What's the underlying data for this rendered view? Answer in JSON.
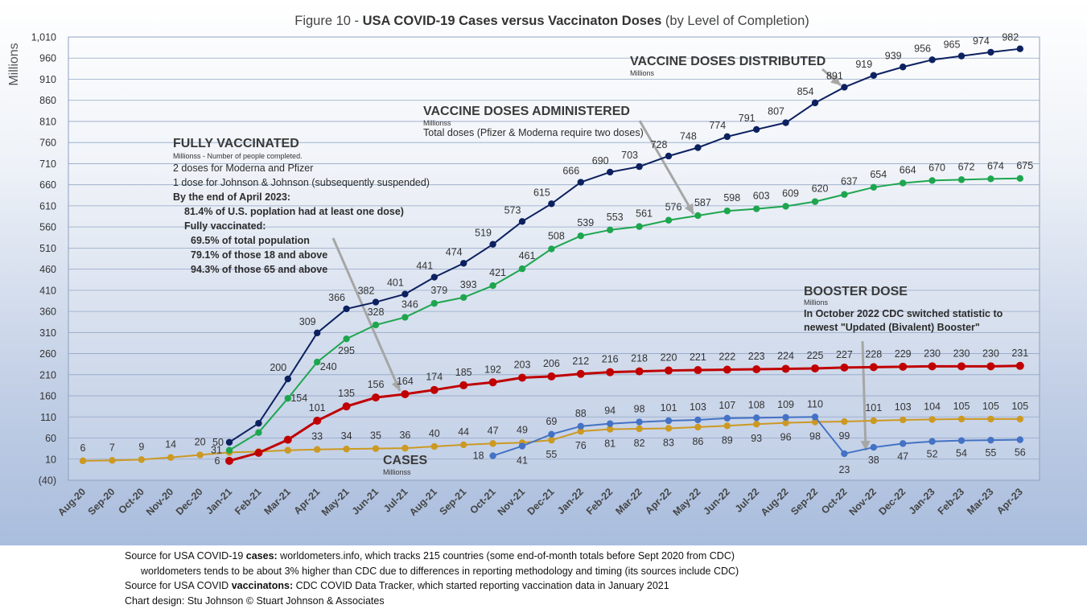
{
  "footer": {
    "line1_a": "Source for USA COVID-19 ",
    "line1_b": "cases:",
    "line1_c": " worldometers.info, which tracks 215 countries  (some end-of-month totals before Sept 2020 from CDC)",
    "line2": "worldometers tends to be about 3% higher than CDC due to differences in reporting methodology and timing (its sources include CDC)",
    "line3_a": "Source for USA COVID ",
    "line3_b": "vaccinatons:",
    "line3_c": " CDC COVID Data Tracker, which started reporting vaccination data in January 2021",
    "line4": "Chart design: Stu Johnson © Stuart Johnson & Associates"
  },
  "annotations": {
    "distributed": {
      "title": "VACCINE DOSES DISTRIBUTED",
      "sub": "Millions"
    },
    "administered": {
      "title": "VACCINE DOSES ADMINISTERED",
      "sub": "Millionss",
      "note": "Total doses (Pfizer & Moderna require two doses)"
    },
    "fully": {
      "title": "FULLY VACCINATED",
      "sub": "Millionss - Number of people completed.",
      "l1": "2 doses for Moderna and Pfizer",
      "l2": "1 dose for Johnson & Johnson (subsequently suspended)",
      "b1": "By the end of April 2023:",
      "b2": "81.4% of U.S. poplation had at least one dose)",
      "b3": "Fully vaccinated:",
      "b4": "69.5% of total population",
      "b5": "79.1% of those 18 and above",
      "b6": "94.3% of those 65 and above"
    },
    "booster": {
      "title": "BOOSTER DOSE",
      "sub": "Millions",
      "b1": "In October 2022 CDC switched statistic to",
      "b2": "newest \"Updated (Bivalent) Booster\""
    },
    "cases": {
      "title": "CASES",
      "sub": "Millionss"
    }
  },
  "chart_data": {
    "type": "line",
    "title_prefix": "Figure 10 - ",
    "title_bold": "USA COVID-19 Cases versus Vaccinaton Doses",
    "title_suffix": " (by Level of Completion)",
    "ylabel": "Millions",
    "xlabel": "",
    "ylim": [
      -40,
      1010
    ],
    "yticks": [
      -40,
      10,
      60,
      110,
      160,
      210,
      260,
      310,
      360,
      410,
      460,
      510,
      560,
      610,
      660,
      710,
      760,
      810,
      860,
      910,
      960,
      1010
    ],
    "ytick_labels": [
      "(40)",
      "10",
      "60",
      "110",
      "160",
      "210",
      "260",
      "310",
      "360",
      "410",
      "460",
      "510",
      "560",
      "610",
      "660",
      "710",
      "760",
      "810",
      "860",
      "910",
      "960",
      "1,010"
    ],
    "grid": "horizontal",
    "categories": [
      "Aug-20",
      "Sep-20",
      "Oct-20",
      "Nov-20",
      "Dec-20",
      "Jan-21",
      "Feb-21",
      "Mar-21",
      "Apr-21",
      "May-21",
      "Jun-21",
      "Jul-21",
      "Aug-21",
      "Sep-21",
      "Oct-21",
      "Nov-21",
      "Dec-21",
      "Jan-22",
      "Feb-22",
      "Mar-22",
      "Apr-22",
      "May-22",
      "Jun-22",
      "Jul-22",
      "Aug-22",
      "Sep-22",
      "Oct-22",
      "Nov-22",
      "Dec-22",
      "Jan-23",
      "Feb-23",
      "Mar-23",
      "Apr-23"
    ],
    "series": [
      {
        "key": "distributed",
        "color": "#0d2160",
        "values": [
          null,
          null,
          null,
          null,
          null,
          50,
          95,
          200,
          309,
          366,
          382,
          401,
          441,
          474,
          519,
          573,
          615,
          666,
          690,
          703,
          728,
          748,
          774,
          791,
          807,
          854,
          891,
          919,
          939,
          956,
          965,
          974,
          982
        ],
        "labels": [
          null,
          null,
          null,
          null,
          null,
          "50",
          null,
          "200",
          "309",
          "366",
          "382",
          "401",
          "441",
          "474",
          "519",
          "573",
          "615",
          "666",
          "690",
          "703",
          "728",
          "748",
          "774",
          "791",
          "807",
          "854",
          "891",
          "919",
          "939",
          "956",
          "965",
          "974",
          "982"
        ]
      },
      {
        "key": "administered",
        "color": "#1ea64f",
        "values": [
          null,
          null,
          null,
          null,
          null,
          31,
          73,
          154,
          240,
          295,
          328,
          346,
          379,
          393,
          421,
          461,
          508,
          539,
          553,
          561,
          576,
          587,
          598,
          603,
          609,
          620,
          637,
          654,
          664,
          670,
          672,
          674,
          675
        ],
        "labels": [
          null,
          null,
          null,
          null,
          null,
          "31",
          null,
          "154",
          "240",
          "295",
          "328",
          "346",
          "379",
          "393",
          "421",
          "461",
          "508",
          "539",
          "553",
          "561",
          "576",
          "587",
          "598",
          "603",
          "609",
          "620",
          "637",
          "654",
          "664",
          "670",
          "672",
          "674",
          "675"
        ]
      },
      {
        "key": "fully",
        "color": "#c00000",
        "values": [
          null,
          null,
          null,
          null,
          null,
          6,
          25,
          56,
          101,
          135,
          156,
          164,
          174,
          185,
          192,
          203,
          206,
          212,
          216,
          218,
          220,
          221,
          222,
          223,
          224,
          225,
          227,
          228,
          229,
          230,
          230,
          230,
          231
        ],
        "labels": [
          null,
          null,
          null,
          null,
          null,
          "6",
          null,
          null,
          "101",
          "135",
          "156",
          "164",
          "174",
          "185",
          "192",
          "203",
          "206",
          "212",
          "216",
          "218",
          "220",
          "221",
          "222",
          "223",
          "224",
          "225",
          "227",
          "228",
          "229",
          "230",
          "230",
          "230",
          "231"
        ]
      },
      {
        "key": "cases",
        "color": "#cc9922",
        "values": [
          6,
          7,
          9,
          14,
          20,
          26,
          28,
          31,
          33,
          34,
          35,
          36,
          40,
          44,
          47,
          49,
          55,
          76,
          81,
          82,
          83,
          86,
          89,
          93,
          96,
          98,
          99,
          101,
          103,
          104,
          105,
          105,
          105
        ],
        "labels": [
          "6",
          "7",
          "9",
          "14",
          "20",
          null,
          null,
          null,
          "33",
          "34",
          "35",
          "36",
          "40",
          "44",
          "47",
          "49",
          "55",
          "76",
          "81",
          "82",
          "83",
          "86",
          "89",
          "93",
          "96",
          "98",
          "99",
          "101",
          "103",
          "104",
          "105",
          "105",
          "105"
        ]
      },
      {
        "key": "booster",
        "color": "#4472c4",
        "values": [
          null,
          null,
          null,
          null,
          null,
          null,
          null,
          null,
          null,
          null,
          null,
          null,
          null,
          null,
          18,
          41,
          69,
          88,
          94,
          98,
          101,
          103,
          107,
          108,
          109,
          110,
          23,
          38,
          47,
          52,
          54,
          55,
          56
        ],
        "labels": [
          null,
          null,
          null,
          null,
          null,
          null,
          null,
          null,
          null,
          null,
          null,
          null,
          null,
          null,
          "18",
          "41",
          "69",
          "88",
          "94",
          "98",
          "101",
          "103",
          "107",
          "108",
          "109",
          "110",
          "23",
          "38",
          "47",
          "52",
          "54",
          "55",
          "56"
        ]
      }
    ]
  }
}
